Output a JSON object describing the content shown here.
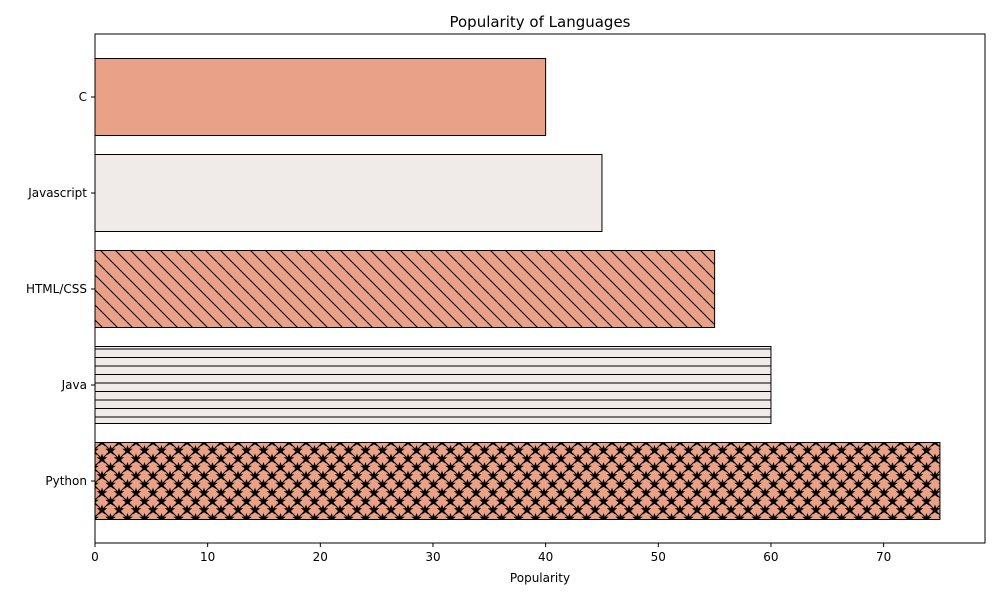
{
  "chart_data": {
    "type": "bar",
    "orientation": "horizontal",
    "title": "Popularity of Languages",
    "xlabel": "Popularity",
    "ylabel": "",
    "categories": [
      "Python",
      "Java",
      "HTML/CSS",
      "Javascript",
      "C"
    ],
    "values": [
      75,
      60,
      55,
      45,
      40
    ],
    "xlim": [
      0,
      79
    ],
    "xticks": [
      0,
      10,
      20,
      30,
      40,
      50,
      60,
      70
    ],
    "grid": false,
    "legend": "none",
    "bar_colors": [
      "#e9a287",
      "#f0ebe8",
      "#e9a287",
      "#f0ebe8",
      "#e9a287"
    ],
    "bar_patterns": [
      "diagonal-cross-stars",
      "horizontal-lines",
      "diagonal-lines",
      "none",
      "none"
    ],
    "edge_color": "#000000"
  }
}
